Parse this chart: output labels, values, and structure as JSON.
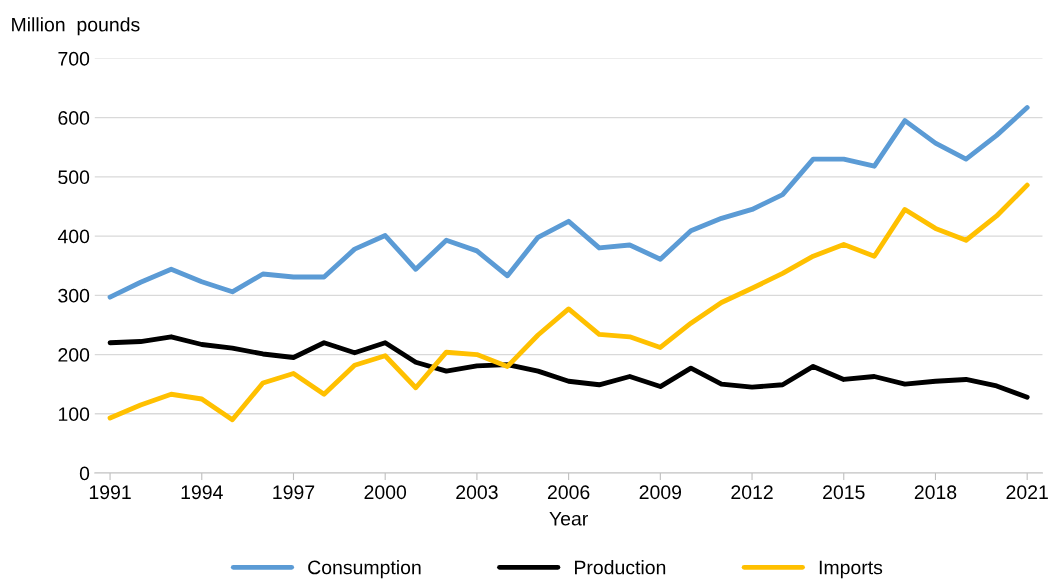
{
  "chart_data": {
    "type": "line",
    "ylabel": "Million  pounds",
    "xlabel": "Year",
    "x": [
      1991,
      1992,
      1993,
      1994,
      1995,
      1996,
      1997,
      1998,
      1999,
      2000,
      2001,
      2002,
      2003,
      2004,
      2005,
      2006,
      2007,
      2008,
      2009,
      2010,
      2011,
      2012,
      2013,
      2014,
      2015,
      2016,
      2017,
      2018,
      2019,
      2020,
      2021
    ],
    "series": [
      {
        "name": "Consumption",
        "color": "#5b9bd5",
        "values": [
          297,
          322,
          344,
          323,
          306,
          336,
          331,
          331,
          378,
          401,
          344,
          393,
          375,
          333,
          398,
          425,
          380,
          385,
          361,
          409,
          430,
          445,
          470,
          530,
          530,
          518,
          595,
          557,
          530,
          570,
          617
        ]
      },
      {
        "name": "Production",
        "color": "#000000",
        "values": [
          220,
          222,
          230,
          217,
          211,
          201,
          195,
          220,
          203,
          220,
          187,
          172,
          181,
          183,
          172,
          155,
          149,
          163,
          146,
          177,
          150,
          145,
          149,
          180,
          158,
          163,
          150,
          155,
          158,
          147,
          128
        ]
      },
      {
        "name": "Imports",
        "color": "#ffc000",
        "values": [
          93,
          115,
          133,
          125,
          90,
          152,
          168,
          133,
          182,
          198,
          144,
          204,
          200,
          180,
          233,
          277,
          234,
          230,
          212,
          253,
          288,
          312,
          337,
          366,
          386,
          366,
          445,
          413,
          393,
          434,
          486
        ]
      }
    ],
    "xlim": [
      1990.5,
      2021.5
    ],
    "xticks": [
      1991,
      1994,
      1997,
      2000,
      2003,
      2006,
      2009,
      2012,
      2015,
      2018,
      2021
    ],
    "ylim": [
      0,
      700
    ],
    "yticks": [
      0,
      100,
      200,
      300,
      400,
      500,
      600,
      700
    ],
    "grid": "y",
    "legend": "bottom",
    "marker": "none",
    "line_style": "solid"
  }
}
